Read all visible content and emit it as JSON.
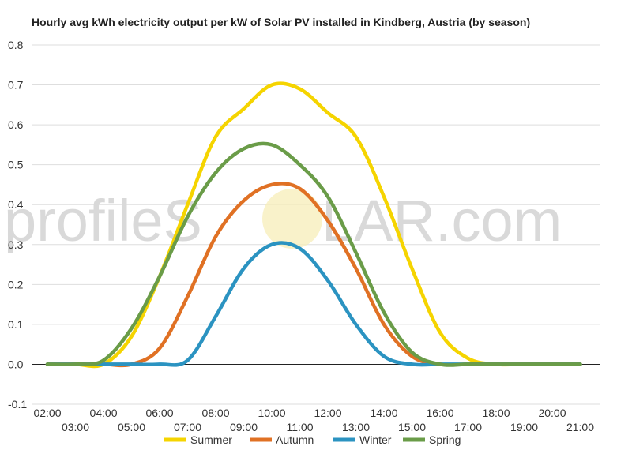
{
  "chart_data": {
    "type": "line",
    "title": "Hourly avg kWh electricity output per kW of Solar PV installed in Kindberg, Austria (by season)",
    "xlabel": "",
    "ylabel": "",
    "ylim": [
      -0.1,
      0.8
    ],
    "yticks": [
      "-0.1",
      "0.0",
      "0.1",
      "0.2",
      "0.3",
      "0.4",
      "0.5",
      "0.6",
      "0.7",
      "0.8"
    ],
    "x": [
      "02:00",
      "03:00",
      "04:00",
      "05:00",
      "06:00",
      "07:00",
      "08:00",
      "09:00",
      "10:00",
      "11:00",
      "12:00",
      "13:00",
      "14:00",
      "15:00",
      "16:00",
      "17:00",
      "18:00",
      "19:00",
      "20:00",
      "21:00"
    ],
    "grid": true,
    "legend_position": "bottom",
    "watermark": {
      "left": "profileS",
      "right": "LAR.com"
    },
    "series": [
      {
        "name": "Summer",
        "color": "#f5d400",
        "values": [
          0,
          0,
          0,
          0.07,
          0.22,
          0.4,
          0.57,
          0.64,
          0.7,
          0.69,
          0.63,
          0.57,
          0.42,
          0.24,
          0.08,
          0.015,
          0,
          0,
          0,
          0
        ]
      },
      {
        "name": "Autumn",
        "color": "#e07124",
        "values": [
          0,
          0,
          0,
          0,
          0.04,
          0.17,
          0.32,
          0.41,
          0.45,
          0.44,
          0.36,
          0.24,
          0.1,
          0.02,
          0,
          0,
          0,
          0,
          0,
          0
        ]
      },
      {
        "name": "Winter",
        "color": "#2b93c1",
        "values": [
          0,
          0,
          0,
          0,
          0,
          0.01,
          0.12,
          0.24,
          0.3,
          0.29,
          0.21,
          0.1,
          0.02,
          0,
          0,
          0,
          0,
          0,
          0,
          0
        ]
      },
      {
        "name": "Spring",
        "color": "#6a9c48",
        "values": [
          0,
          0,
          0.01,
          0.09,
          0.22,
          0.37,
          0.48,
          0.54,
          0.55,
          0.5,
          0.42,
          0.28,
          0.13,
          0.03,
          0,
          0,
          0,
          0,
          0,
          0
        ]
      }
    ]
  }
}
